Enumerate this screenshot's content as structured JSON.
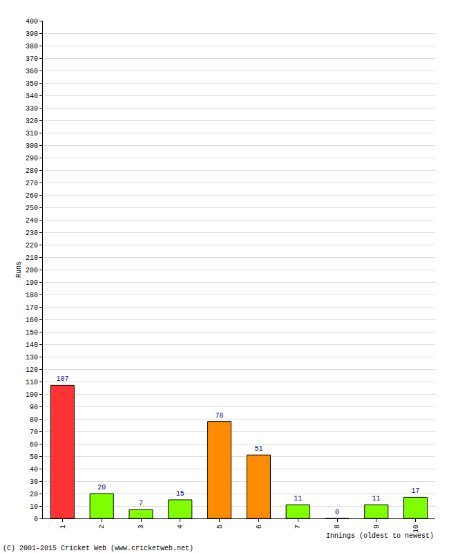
{
  "chart_data": {
    "type": "bar",
    "y_label": "Runs",
    "x_label": "Innings (oldest to newest)",
    "annotations": [
      "(C) 2001-2015 Cricket Web (www.cricketweb.net)"
    ],
    "categories": [
      "1",
      "2",
      "3",
      "4",
      "5",
      "6",
      "7",
      "8",
      "9",
      "10"
    ],
    "values": [
      107,
      20,
      7,
      15,
      78,
      51,
      11,
      0,
      11,
      17
    ],
    "colors": [
      "#ff3333",
      "#80ff00",
      "#80ff00",
      "#80ff00",
      "#ff8c00",
      "#ff8c00",
      "#80ff00",
      "#80ff00",
      "#80ff00",
      "#80ff00"
    ],
    "ylim": [
      0,
      400
    ],
    "yticks": [
      0,
      10,
      20,
      30,
      40,
      50,
      60,
      70,
      80,
      90,
      100,
      110,
      120,
      130,
      140,
      150,
      160,
      170,
      180,
      190,
      200,
      210,
      220,
      230,
      240,
      250,
      260,
      270,
      280,
      290,
      300,
      310,
      320,
      330,
      340,
      350,
      360,
      370,
      380,
      390,
      400
    ],
    "grid": true,
    "data_labels": true
  }
}
